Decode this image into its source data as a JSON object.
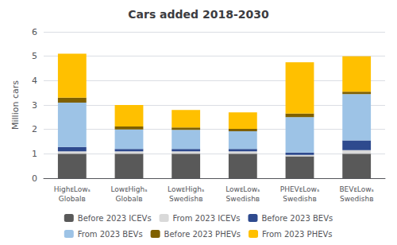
{
  "chart_data": {
    "type": "bar",
    "title": "Cars added 2018-2030",
    "ylabel": "Million cars",
    "categories": [
      "HighᴇLowₛ\nGlobalʙ",
      "LowᴇHighₛ\nGlobalʙ",
      "LowᴇHighₛ\nSwedishʙ",
      "LowᴇLowₛ\nSwedishʙ",
      "PHEVᴇLowₛ\nSwedishʙ",
      "BEVᴇLowₛ\nSwedishʙ"
    ],
    "series": [
      {
        "name": "Before 2023 ICEVs",
        "color": "#595959",
        "values": [
          1.0,
          1.0,
          1.0,
          1.0,
          0.9,
          1.0
        ]
      },
      {
        "name": "From 2023 ICEVs",
        "color": "#d9d9d9",
        "values": [
          0.1,
          0.1,
          0.1,
          0.1,
          0.05,
          0.15
        ]
      },
      {
        "name": "Before 2023 BEVs",
        "color": "#2e4a8e",
        "values": [
          0.18,
          0.1,
          0.1,
          0.1,
          0.1,
          0.4
        ]
      },
      {
        "name": "From 2023 BEVs",
        "color": "#9dc3e6",
        "values": [
          1.82,
          0.8,
          0.78,
          0.72,
          1.45,
          1.9
        ]
      },
      {
        "name": "Before 2023 PHEVs",
        "color": "#7f6000",
        "values": [
          0.2,
          0.12,
          0.1,
          0.1,
          0.15,
          0.1
        ]
      },
      {
        "name": "From 2023 PHEVs",
        "color": "#ffc000",
        "values": [
          1.8,
          0.88,
          0.72,
          0.68,
          2.1,
          1.45
        ]
      }
    ],
    "ylim": [
      0,
      6
    ],
    "yticks": [
      0,
      1,
      2,
      3,
      4,
      5,
      6
    ],
    "stacked": true,
    "grid": true,
    "legend": "bottom"
  }
}
